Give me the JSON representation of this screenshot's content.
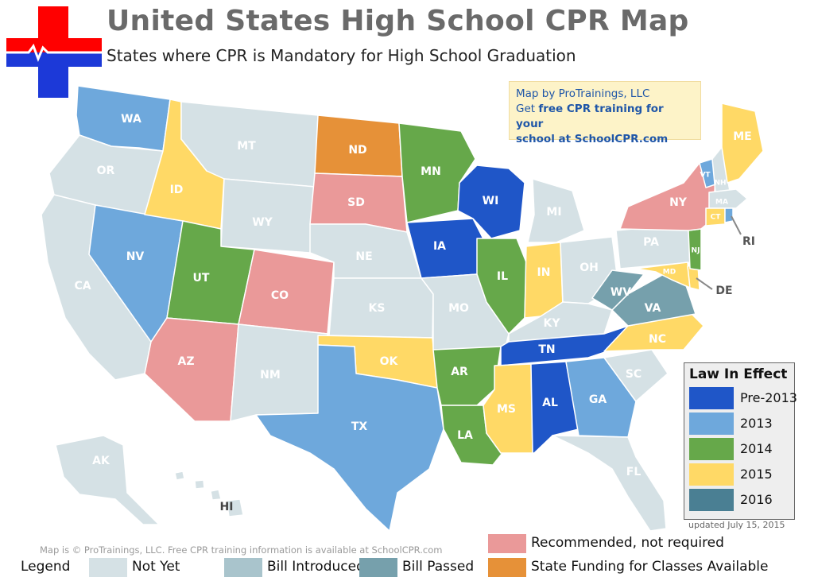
{
  "header": {
    "title": "United States High School CPR Map",
    "subtitle": "States where CPR is Mandatory for High School Graduation"
  },
  "credit_box": {
    "line1": "Map by ProTrainings, LLC",
    "line2_prefix": "Get ",
    "line2_bold": "free CPR training for your",
    "line3_prefix": "school",
    "line3_bold": " at SchoolCPR.com"
  },
  "colors": {
    "pre2013": "#1f56c8",
    "y2013": "#6ea8dc",
    "y2014": "#66a84a",
    "y2015": "#ffd966",
    "y2016": "#4a7f93",
    "recommended": "#ea9999",
    "funding": "#e69138",
    "not_yet": "#d5e1e5",
    "bill_introduced": "#a9c4cc",
    "bill_passed": "#76a0ac",
    "logo_red": "#ff0000",
    "logo_blue": "#1c39d8"
  },
  "law_in_effect": {
    "title": "Law In Effect",
    "items": [
      {
        "label": "Pre-2013",
        "color_key": "pre2013"
      },
      {
        "label": "2013",
        "color_key": "y2013"
      },
      {
        "label": "2014",
        "color_key": "y2014"
      },
      {
        "label": "2015",
        "color_key": "y2015"
      },
      {
        "label": "2016",
        "color_key": "y2016"
      }
    ]
  },
  "legend": {
    "title": "Legend",
    "items": [
      {
        "label": "Not Yet",
        "color_key": "not_yet"
      },
      {
        "label": "Bill Introduced",
        "color_key": "bill_introduced"
      },
      {
        "label": "Bill Passed",
        "color_key": "bill_passed"
      },
      {
        "label": "Recommended, not required",
        "color_key": "recommended"
      },
      {
        "label": "State Funding for Classes Available",
        "color_key": "funding"
      }
    ]
  },
  "footer": {
    "updated": "updated July 15, 2015",
    "copyright": "Map is © ProTrainings, LLC. Free CPR training information is available at SchoolCPR.com"
  },
  "states": {
    "WA": {
      "label": "WA",
      "status": "y2013"
    },
    "OR": {
      "label": "OR",
      "status": "not_yet"
    },
    "CA": {
      "label": "CA",
      "status": "not_yet"
    },
    "NV": {
      "label": "NV",
      "status": "y2013"
    },
    "ID": {
      "label": "ID",
      "status": "y2015"
    },
    "MT": {
      "label": "MT",
      "status": "not_yet"
    },
    "WY": {
      "label": "WY",
      "status": "not_yet"
    },
    "UT": {
      "label": "UT",
      "status": "y2014"
    },
    "AZ": {
      "label": "AZ",
      "status": "recommended"
    },
    "CO": {
      "label": "CO",
      "status": "recommended"
    },
    "NM": {
      "label": "NM",
      "status": "not_yet"
    },
    "ND": {
      "label": "ND",
      "status": "funding"
    },
    "SD": {
      "label": "SD",
      "status": "recommended"
    },
    "NE": {
      "label": "NE",
      "status": "not_yet"
    },
    "KS": {
      "label": "KS",
      "status": "not_yet"
    },
    "OK": {
      "label": "OK",
      "status": "y2015"
    },
    "TX": {
      "label": "TX",
      "status": "y2013"
    },
    "MN": {
      "label": "MN",
      "status": "y2014"
    },
    "IA": {
      "label": "IA",
      "status": "pre2013"
    },
    "MO": {
      "label": "MO",
      "status": "not_yet"
    },
    "AR": {
      "label": "AR",
      "status": "y2014"
    },
    "LA": {
      "label": "LA",
      "status": "y2014"
    },
    "WI": {
      "label": "WI",
      "status": "pre2013"
    },
    "IL": {
      "label": "IL",
      "status": "y2014"
    },
    "MI": {
      "label": "MI",
      "status": "not_yet"
    },
    "IN": {
      "label": "IN",
      "status": "y2015"
    },
    "OH": {
      "label": "OH",
      "status": "not_yet"
    },
    "KY": {
      "label": "KY",
      "status": "not_yet"
    },
    "TN": {
      "label": "TN",
      "status": "pre2013"
    },
    "MS": {
      "label": "MS",
      "status": "y2015"
    },
    "AL": {
      "label": "AL",
      "status": "pre2013"
    },
    "GA": {
      "label": "GA",
      "status": "y2013"
    },
    "FL": {
      "label": "FL",
      "status": "not_yet"
    },
    "SC": {
      "label": "SC",
      "status": "not_yet"
    },
    "NC": {
      "label": "NC",
      "status": "y2015"
    },
    "VA": {
      "label": "VA",
      "status": "bill_passed"
    },
    "WV": {
      "label": "WV",
      "status": "bill_passed"
    },
    "PA": {
      "label": "PA",
      "status": "not_yet"
    },
    "NY": {
      "label": "NY",
      "status": "recommended"
    },
    "NJ": {
      "label": "NJ",
      "status": "y2014"
    },
    "DE": {
      "label": "DE",
      "status": "y2015"
    },
    "MD": {
      "label": "MD",
      "status": "y2015"
    },
    "CT": {
      "label": "CT",
      "status": "y2015"
    },
    "RI": {
      "label": "RI",
      "status": "y2013"
    },
    "MA": {
      "label": "MA",
      "status": "not_yet"
    },
    "VT": {
      "label": "VT",
      "status": "y2013"
    },
    "NH": {
      "label": "NH",
      "status": "not_yet"
    },
    "ME": {
      "label": "ME",
      "status": "y2015"
    },
    "AK": {
      "label": "AK",
      "status": "not_yet"
    },
    "HI": {
      "label": "HI",
      "status": "not_yet"
    }
  }
}
